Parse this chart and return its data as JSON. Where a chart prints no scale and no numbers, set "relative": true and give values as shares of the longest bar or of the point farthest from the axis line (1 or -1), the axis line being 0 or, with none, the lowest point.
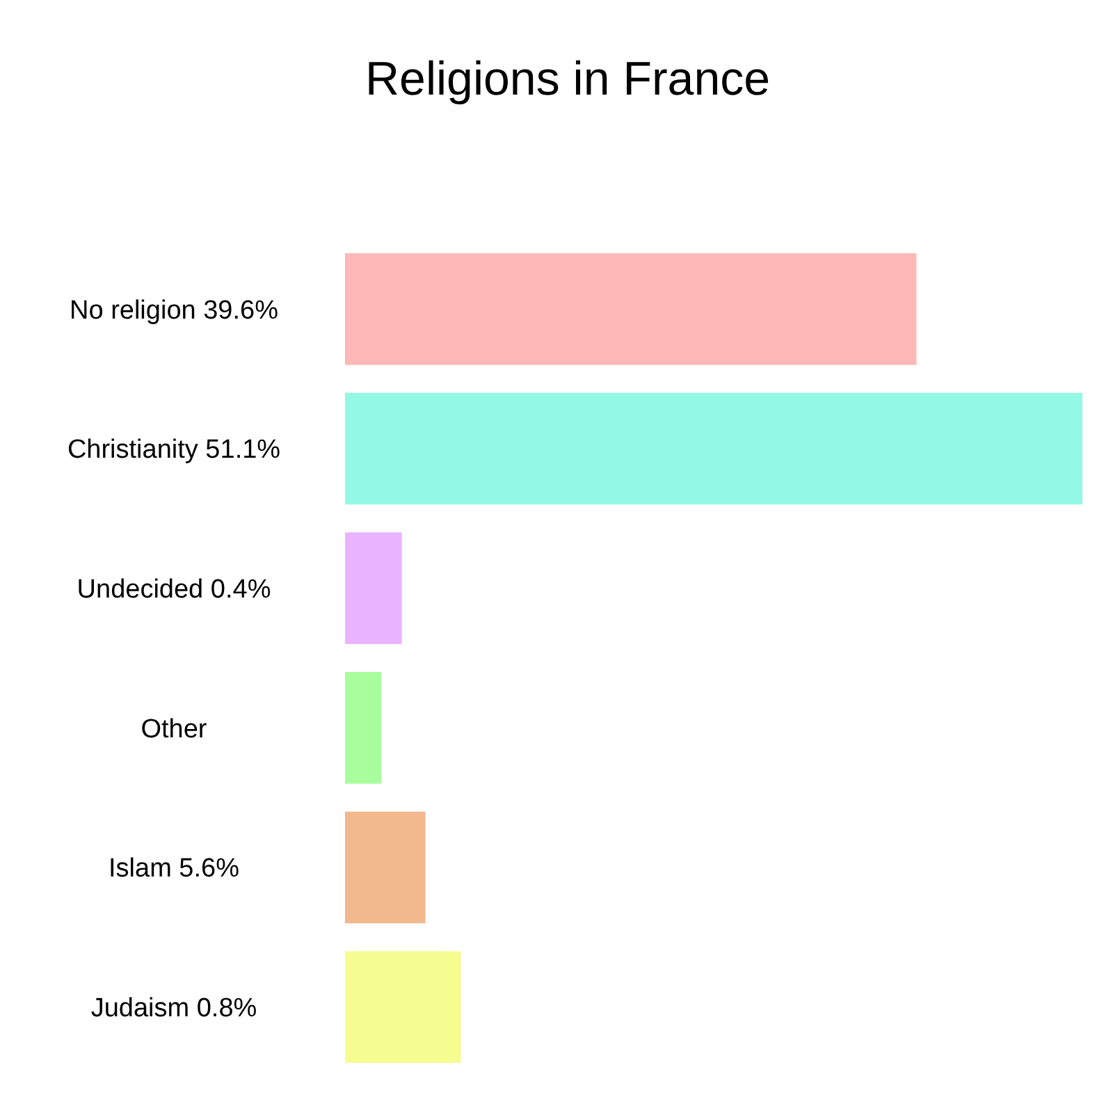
{
  "chart_data": {
    "type": "bar",
    "title": "Religions in France",
    "orientation": "horizontal",
    "relative": true,
    "categories": [
      "No religion 39.6%",
      "Christianity 51.1%",
      "Undecided 0.4%",
      "Other",
      "Islam 5.6%",
      "Judaism 0.8%"
    ],
    "values": [
      0.775,
      1,
      0.077,
      0.049,
      0.109,
      0.157
    ],
    "colors": [
      "#feb8b8",
      "#94f9e4",
      "#eab3fe",
      "#a8fe9c",
      "#f2b88e",
      "#f6fd90"
    ]
  }
}
